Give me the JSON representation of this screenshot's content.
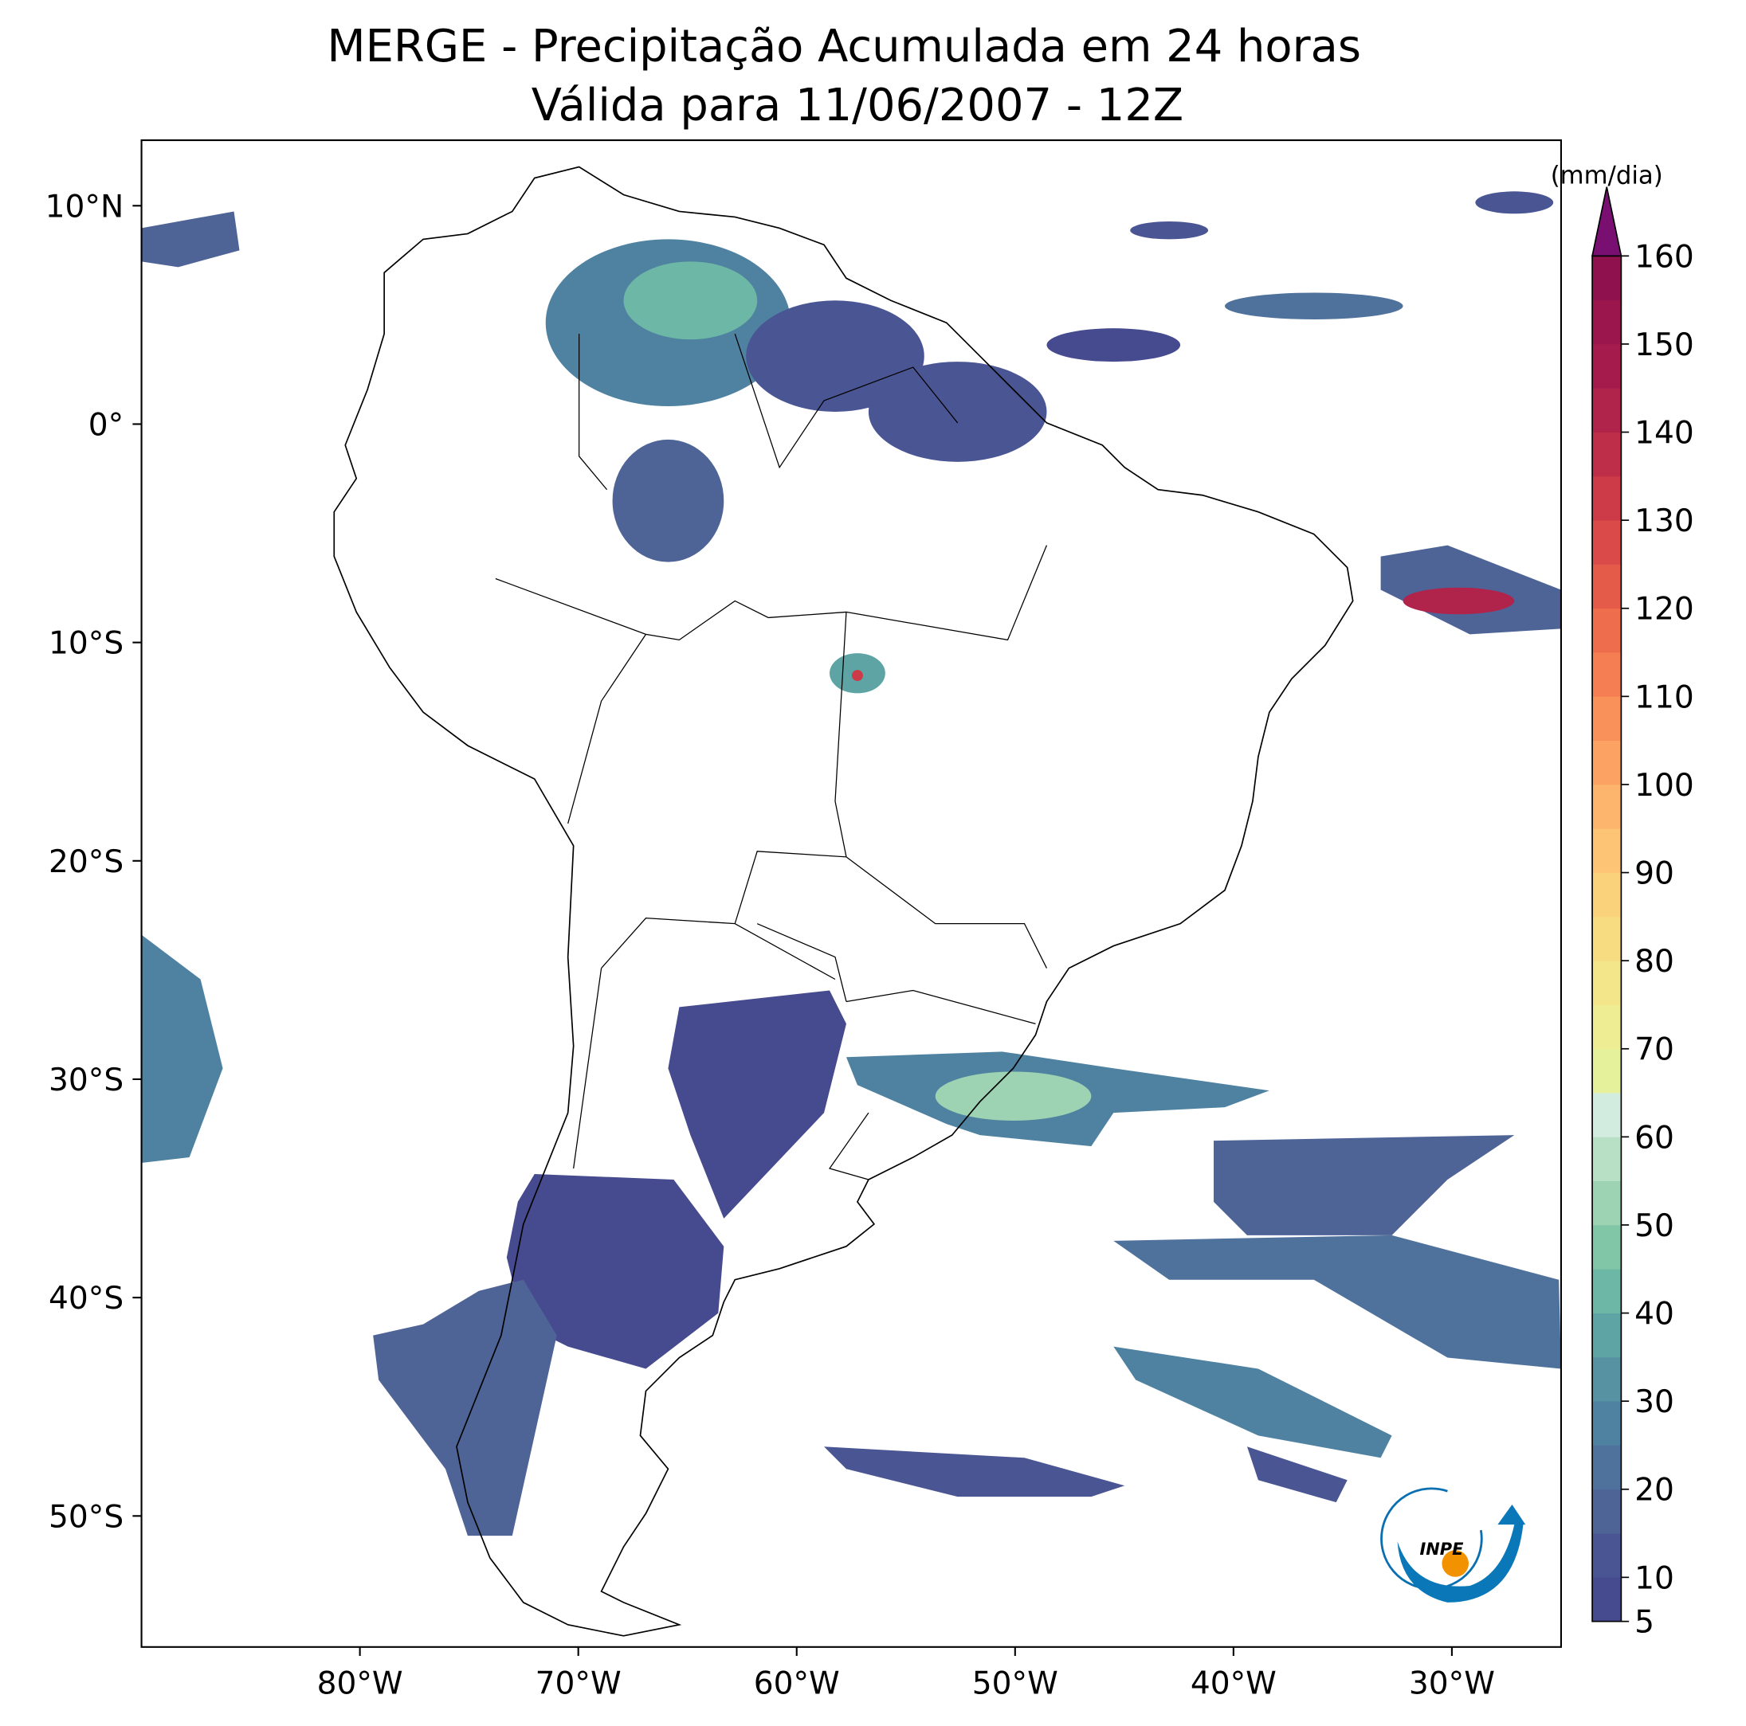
{
  "title": "MERGE - Precipitação Acumulada em 24 horas",
  "subtitle": "Válida para 11/06/2007 - 12Z",
  "map": {
    "xlim": [
      -90,
      -25
    ],
    "ylim": [
      -56,
      13
    ],
    "xticks": [
      {
        "value": -80,
        "label": "80°W"
      },
      {
        "value": -70,
        "label": "70°W"
      },
      {
        "value": -60,
        "label": "60°W"
      },
      {
        "value": -50,
        "label": "50°W"
      },
      {
        "value": -40,
        "label": "40°W"
      },
      {
        "value": -30,
        "label": "30°W"
      }
    ],
    "yticks": [
      {
        "value": 10,
        "label": "10°N"
      },
      {
        "value": 0,
        "label": "0°"
      },
      {
        "value": -10,
        "label": "10°S"
      },
      {
        "value": -20,
        "label": "20°S"
      },
      {
        "value": -30,
        "label": "30°S"
      },
      {
        "value": -40,
        "label": "40°S"
      },
      {
        "value": -50,
        "label": "50°S"
      }
    ]
  },
  "colorbar": {
    "label": "(mm/dia)",
    "lim": [
      5,
      160
    ],
    "ticks": [
      5,
      10,
      20,
      30,
      40,
      50,
      60,
      70,
      80,
      90,
      100,
      110,
      120,
      130,
      140,
      150,
      160
    ],
    "levels": [
      5,
      10,
      15,
      20,
      25,
      30,
      35,
      40,
      45,
      50,
      55,
      60,
      65,
      70,
      75,
      80,
      85,
      90,
      95,
      100,
      105,
      110,
      115,
      120,
      125,
      130,
      135,
      140,
      145,
      150,
      155,
      160
    ],
    "colors": [
      "#464a8f",
      "#4a5593",
      "#4e6497",
      "#4f729c",
      "#4f82a0",
      "#5692a2",
      "#5fa4a4",
      "#6cb7a5",
      "#82c6a8",
      "#9dd3b3",
      "#b8e0c4",
      "#d3ece0",
      "#e6f19b",
      "#eeed93",
      "#f3e58a",
      "#f7dc82",
      "#fad27b",
      "#fcc474",
      "#fdb46c",
      "#fca363",
      "#f9915a",
      "#f57f53",
      "#ee6d4d",
      "#e55b49",
      "#da4a48",
      "#cd3b48",
      "#be2e49",
      "#b0234b",
      "#a51b4c",
      "#9b164c",
      "#8f124f"
    ],
    "extend_color": "#7a0f72"
  },
  "logo": "INPE"
}
